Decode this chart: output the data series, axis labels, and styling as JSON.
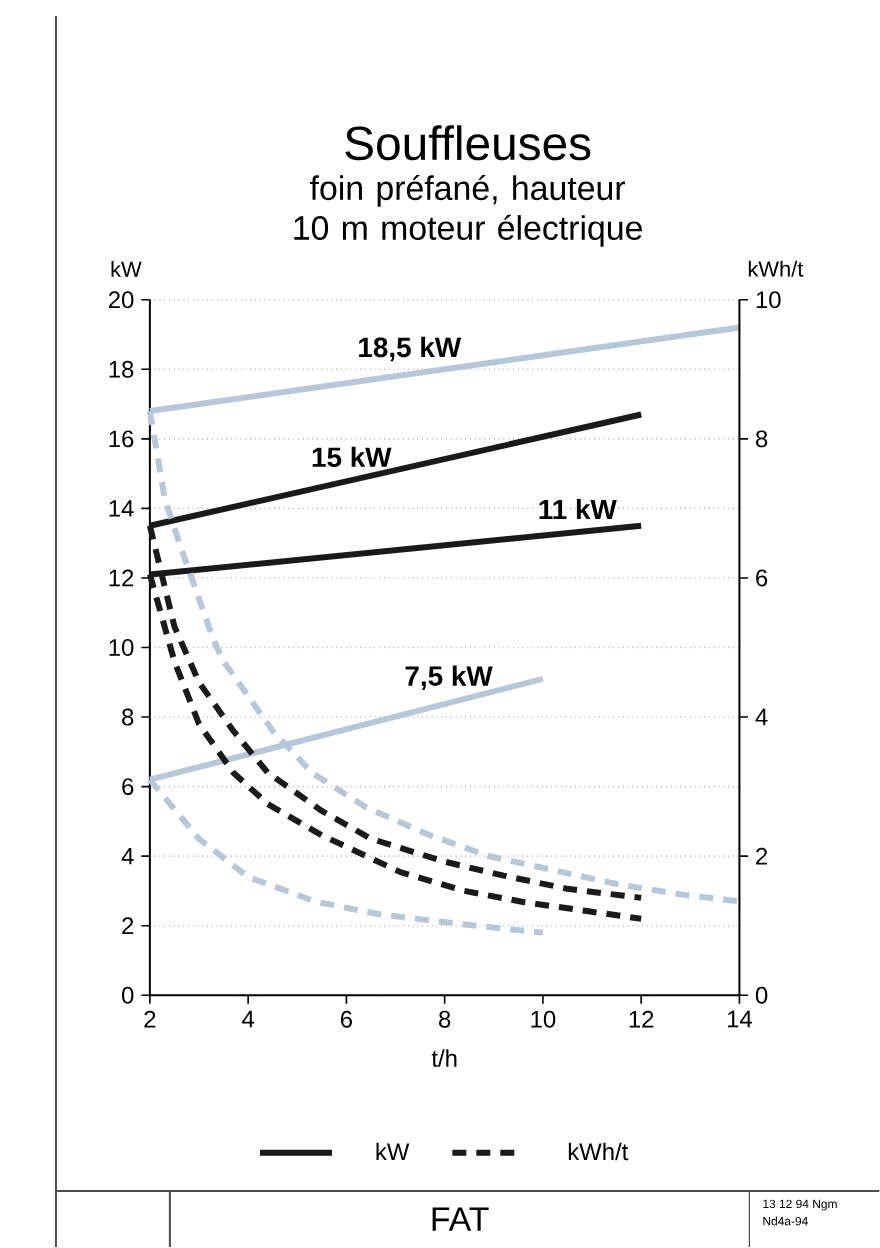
{
  "chart_data": {
    "type": "line",
    "title": "Souffleuses",
    "subtitle": "foin préfané, hauteur 10 m moteur électrique",
    "xlabel": "t/h",
    "ylabel": "kW",
    "y2label": "kWh/t",
    "xlim": [
      2,
      14
    ],
    "xticks": [
      2,
      4,
      6,
      8,
      10,
      12,
      14
    ],
    "ylim": [
      0,
      20
    ],
    "yticks": [
      0,
      2,
      4,
      6,
      8,
      10,
      12,
      14,
      16,
      18,
      20
    ],
    "y2lim": [
      0,
      10
    ],
    "y2ticks": [
      0,
      2,
      4,
      6,
      8,
      10
    ],
    "grid": "y",
    "legend": "bottom",
    "line_style": "solid",
    "marker": "none",
    "series": [
      {
        "name": "kW",
        "color": "#1a1a1a",
        "x": [
          2,
          12
        ],
        "values": [
          13.5,
          16.7
        ]
      },
      {
        "color": "#1a1a1a",
        "x": [
          2,
          12
        ],
        "values": [
          12.1,
          13.5
        ]
      },
      {
        "color": "#b5c7d9",
        "x": [
          2,
          14
        ],
        "values": [
          16.8,
          19.2
        ]
      },
      {
        "color": "#b5c7d9",
        "x": [
          2,
          10
        ],
        "values": [
          6.2,
          9.1
        ]
      },
      {
        "name": "kWh/t",
        "axis": "y2",
        "line_style": "dashed",
        "color": "#1a1a1a",
        "x": [
          2,
          2.5,
          3,
          3.7,
          4.4,
          5.5,
          6.5,
          8,
          9.2,
          10.5,
          12
        ],
        "values": [
          6.75,
          5.3,
          4.5,
          3.8,
          3.2,
          2.65,
          2.25,
          1.92,
          1.72,
          1.53,
          1.4
        ]
      },
      {
        "axis": "y2",
        "line_style": "dashed",
        "color": "#1a1a1a",
        "x": [
          2,
          2.5,
          3,
          3.7,
          4.4,
          5.5,
          7.1,
          8.4,
          9.6,
          10.9,
          12
        ],
        "values": [
          6.05,
          4.8,
          3.9,
          3.2,
          2.75,
          2.3,
          1.77,
          1.5,
          1.34,
          1.21,
          1.1
        ]
      },
      {
        "axis": "y2",
        "line_style": "dashed",
        "color": "#b5c7d9",
        "x": [
          2,
          2.3,
          2.6,
          3.3,
          3.5,
          4.5,
          5.3,
          6.4,
          7.7,
          8.9,
          10.2,
          11.5,
          12.8,
          14
        ],
        "values": [
          8.4,
          7.15,
          6.5,
          5.1,
          4.8,
          3.8,
          3.2,
          2.7,
          2.3,
          2.0,
          1.8,
          1.6,
          1.45,
          1.35
        ]
      },
      {
        "axis": "y2",
        "line_style": "dashed",
        "color": "#b5c7d9",
        "x": [
          2,
          3,
          4,
          5.4,
          6.7,
          8,
          9.3,
          10
        ],
        "values": [
          3.1,
          2.25,
          1.7,
          1.34,
          1.16,
          1.05,
          0.95,
          0.9
        ]
      }
    ],
    "annotations": [
      "15 kW",
      "11 kW",
      "18,5 kW",
      "7,5 kW",
      "FAT",
      "13 12 94 Ngm",
      "Nd4a-94"
    ]
  }
}
